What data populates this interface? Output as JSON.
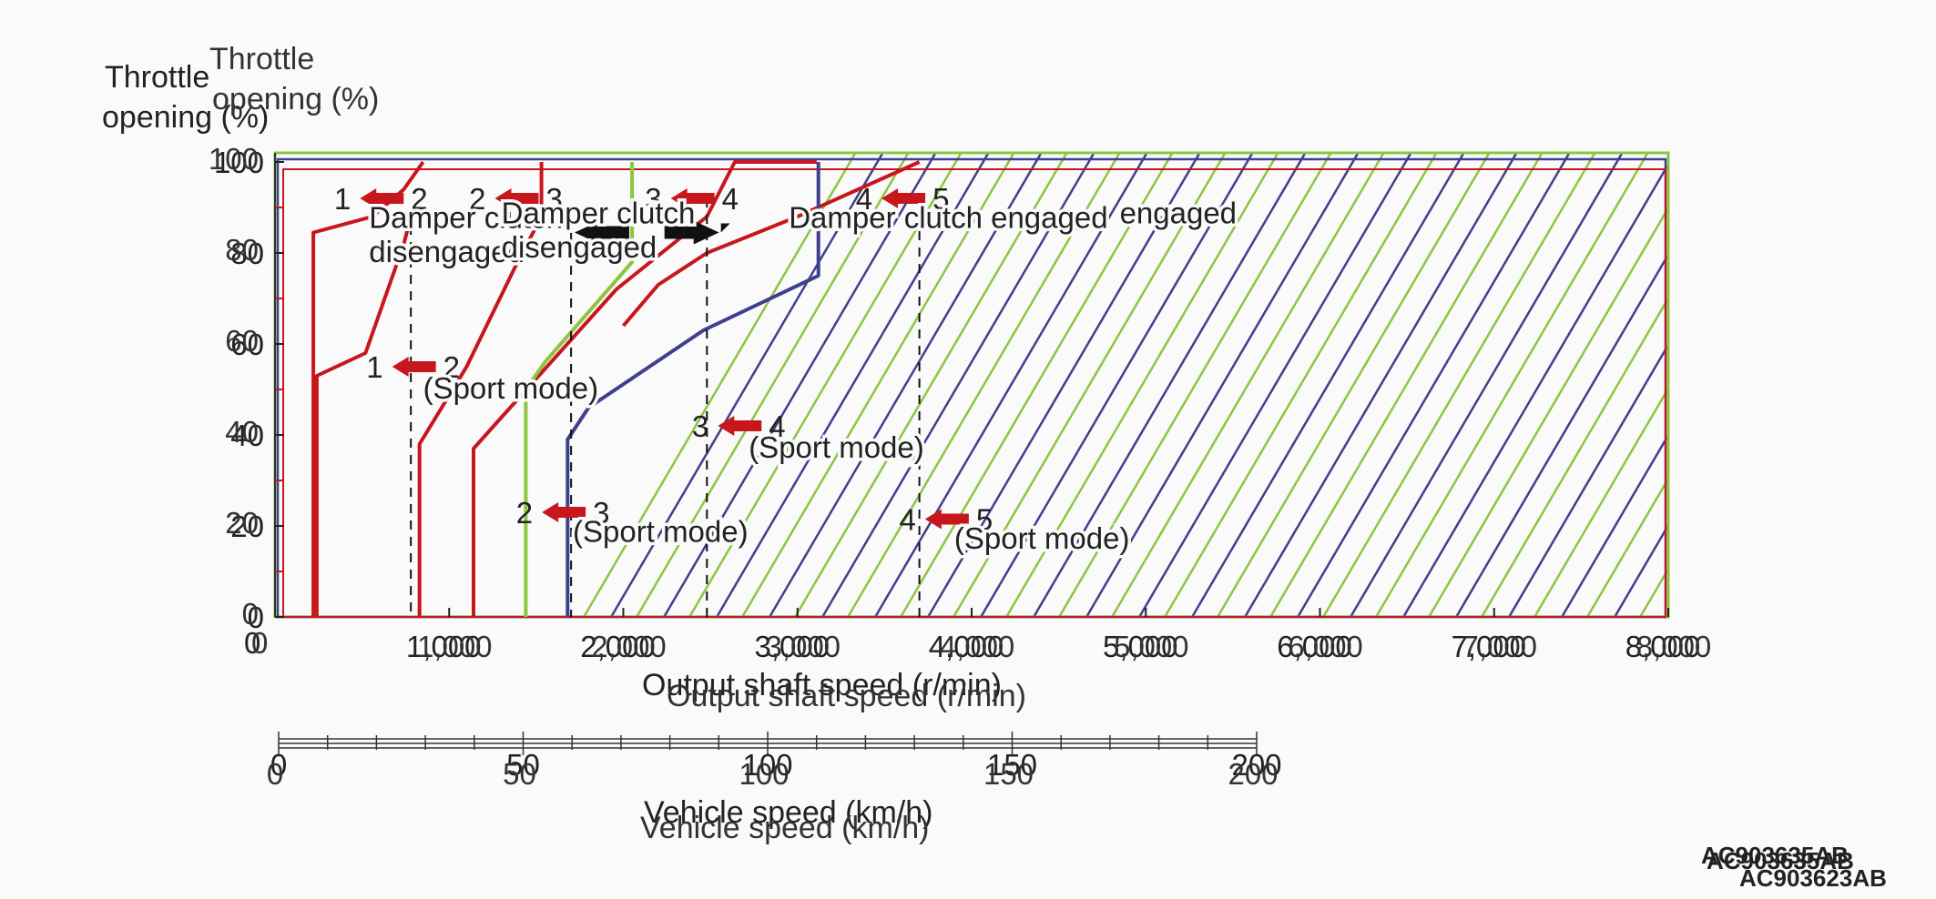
{
  "chart_data": {
    "type": "line",
    "ylabel": "Throttle opening (%)",
    "ylabel_overprint": "Throttle opening (%)",
    "xlabel": "Output shaft speed (r/min)",
    "xlabel_overprint": "Output shaft speed (r/min)",
    "x2label": "Vehicle speed (km/h)",
    "x2label_overprint": "Vehicle speed (km/h)",
    "xlim": [
      0,
      8000
    ],
    "ylim": [
      0,
      100
    ],
    "x2lim": [
      0,
      200
    ],
    "yticks": [
      {
        "value": 100,
        "label": "100"
      },
      {
        "value": 80,
        "label": "80"
      },
      {
        "value": 60,
        "label": "60"
      },
      {
        "value": 40,
        "label": "40"
      },
      {
        "value": 20,
        "label": "20"
      },
      {
        "value": 0,
        "label": "0"
      }
    ],
    "xticks": [
      {
        "value": 1000,
        "label": "1,000"
      },
      {
        "value": 2000,
        "label": "2,000"
      },
      {
        "value": 3000,
        "label": "3,000"
      },
      {
        "value": 4000,
        "label": "4,000"
      },
      {
        "value": 5000,
        "label": "5,000"
      },
      {
        "value": 6000,
        "label": "6,000"
      },
      {
        "value": 7000,
        "label": "7,000"
      },
      {
        "value": 8000,
        "label": "8,000"
      }
    ],
    "x2ticks": [
      {
        "value": 0,
        "label": "0"
      },
      {
        "value": 50,
        "label": "50"
      },
      {
        "value": 100,
        "label": "100"
      },
      {
        "value": 150,
        "label": "150"
      },
      {
        "value": 200,
        "label": "200"
      }
    ],
    "colors": {
      "downshift": "#c8161d",
      "damper_clutch": "#8cc63f",
      "lockup_limit": "#3f3f8f",
      "arrow": "#c8161d",
      "black_arrow": "#111111",
      "axis": "#222222"
    },
    "series": [
      {
        "id": "d12",
        "color": "#c8161d",
        "x": [
          220,
          220,
          560,
          740,
          850,
          850
        ],
        "y": [
          0,
          84.5,
          88,
          94,
          100,
          100
        ]
      },
      {
        "id": "d12_sport",
        "color": "#c8161d",
        "x": [
          240,
          240,
          520,
          740,
          780
        ],
        "y": [
          0,
          53,
          58,
          82,
          88
        ]
      },
      {
        "id": "d23",
        "color": "#c8161d",
        "x": [
          830,
          830,
          1100,
          1380,
          1530,
          1530
        ],
        "y": [
          0,
          38,
          55,
          77,
          88,
          100
        ]
      },
      {
        "id": "d23_sport",
        "color": "#c8161d",
        "x": [
          1140,
          1140,
          1280,
          1960,
          2480
        ],
        "y": [
          0,
          37,
          43,
          72,
          88
        ]
      },
      {
        "id": "d34",
        "color": "#c8161d",
        "x": [
          2480,
          2640,
          3110
        ],
        "y": [
          88,
          100,
          100
        ]
      },
      {
        "id": "d34_sport",
        "color": "#c8161d",
        "x": [
          2000,
          2200,
          2480,
          3000,
          3700
        ],
        "y": [
          64,
          73,
          80,
          88,
          100
        ]
      },
      {
        "id": "dc_off",
        "color": "#8cc63f",
        "x": [
          1440,
          1440,
          1550,
          2050,
          2050,
          2050
        ],
        "y": [
          0,
          50,
          56,
          78,
          100,
          100
        ]
      },
      {
        "id": "dc_on",
        "color": "#3f3f8f",
        "x": [
          1680,
          1680,
          1800,
          2460,
          3120,
          3120,
          3120
        ],
        "y": [
          0,
          39,
          46,
          63,
          75,
          80,
          100
        ]
      }
    ],
    "annotations": [
      {
        "text": "1",
        "text2": "2",
        "x": 655,
        "y": 92,
        "type": "red-arrow"
      },
      {
        "text": "2",
        "text2": "3",
        "x": 1430,
        "y": 92,
        "type": "red-arrow"
      },
      {
        "text": "3",
        "text2": "4",
        "x": 2440,
        "y": 92,
        "type": "red-arrow"
      },
      {
        "text": "4",
        "text2": "5",
        "x": 3650,
        "y": 92,
        "type": "red-arrow"
      },
      {
        "text": "1",
        "text2": "2",
        "x": 840,
        "y": 55,
        "type": "red-arrow"
      },
      {
        "text": "3",
        "text2": "4",
        "x": 2710,
        "y": 42,
        "type": "red-arrow"
      },
      {
        "text": "2",
        "text2": "3",
        "x": 1700,
        "y": 23,
        "type": "red-arrow"
      },
      {
        "text": "4",
        "text2": "5",
        "x": 3900,
        "y": 21.5,
        "type": "red-arrow"
      }
    ],
    "labels": [
      {
        "text": "Damper clutch",
        "x": 540,
        "y": 85.5
      },
      {
        "text": "disengaged",
        "x": 540,
        "y": 78
      },
      {
        "text": "Damper clutch",
        "x": 1300,
        "y": 86.5
      },
      {
        "text": "disengaged",
        "x": 1300,
        "y": 79
      },
      {
        "text": "Damper clutch engaged",
        "x": 2950,
        "y": 85.5
      },
      {
        "text": "engaged",
        "x": 4850,
        "y": 86.5
      },
      {
        "text": "(Sport mode)",
        "x": 850,
        "y": 48
      },
      {
        "text": "(Sport mode)",
        "x": 2720,
        "y": 35
      },
      {
        "text": "(Sport mode)",
        "x": 1710,
        "y": 16.5
      },
      {
        "text": "(Sport mode)",
        "x": 3900,
        "y": 15
      }
    ]
  },
  "codes": [
    "AC903635AB",
    "AC903635AB",
    "AC903623AB"
  ]
}
